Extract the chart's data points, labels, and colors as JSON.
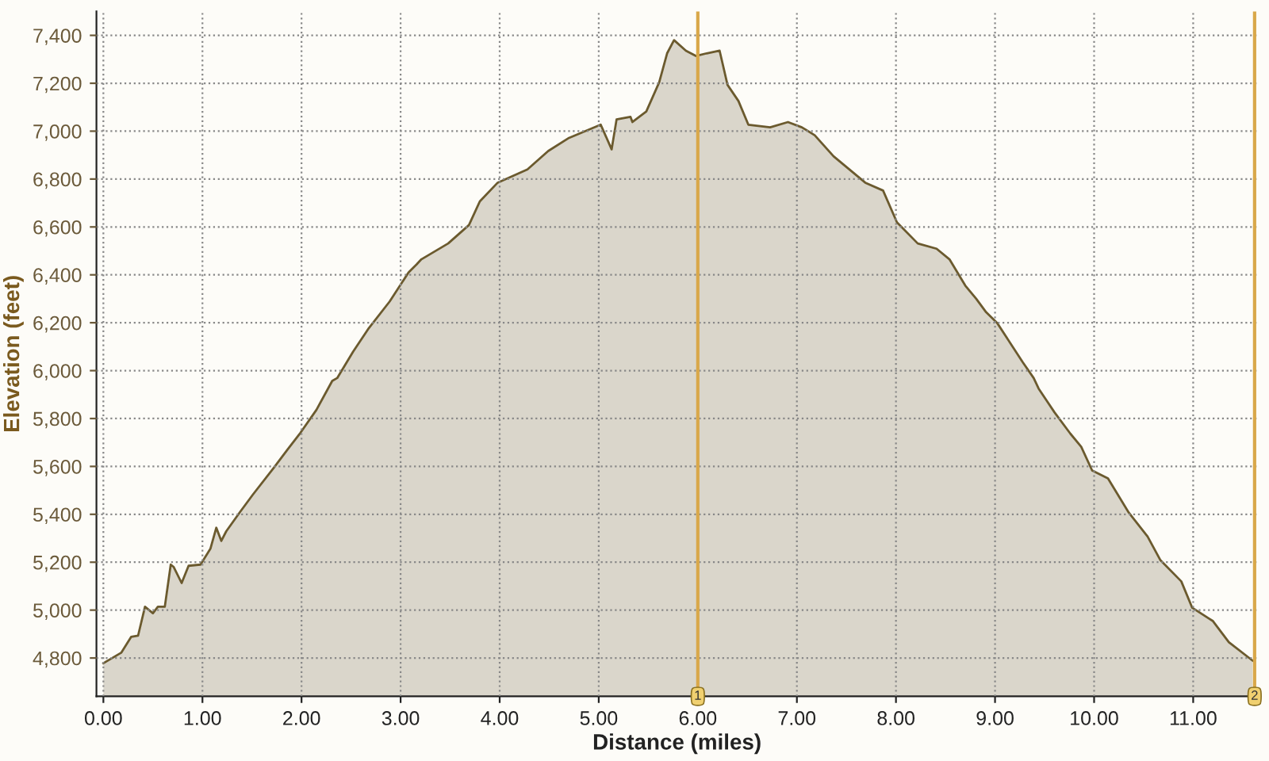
{
  "chart_data": {
    "type": "area",
    "xlabel": "Distance (miles)",
    "ylabel": "Elevation (feet)",
    "x": [
      0,
      0.18,
      0.28,
      0.35,
      0.42,
      0.5,
      0.55,
      0.62,
      0.68,
      0.71,
      0.79,
      0.86,
      0.98,
      1.08,
      1.14,
      1.19,
      1.24,
      1.38,
      1.51,
      1.72,
      1.86,
      1.99,
      2.15,
      2.31,
      2.36,
      2.52,
      2.68,
      2.89,
      3.08,
      3.16,
      3.21,
      3.48,
      3.69,
      3.8,
      3.98,
      4.28,
      4.49,
      4.7,
      5.02,
      5.13,
      5.18,
      5.32,
      5.34,
      5.48,
      5.61,
      5.69,
      5.76,
      5.88,
      5.98,
      6.09,
      6.22,
      6.3,
      6.41,
      6.51,
      6.73,
      6.91,
      7.05,
      7.18,
      7.37,
      7.69,
      7.87,
      8.01,
      8.22,
      8.41,
      8.54,
      8.7,
      8.81,
      8.91,
      9.02,
      9.28,
      9.39,
      9.44,
      9.6,
      9.76,
      9.87,
      9.98,
      10.14,
      10.35,
      10.54,
      10.67,
      10.88,
      10.99,
      11.2,
      11.36,
      11.6
    ],
    "series": [
      {
        "color": "#6b5a2e",
        "values": [
          4778,
          4822,
          4888,
          4893,
          5014,
          4987,
          5014,
          5014,
          5190,
          5180,
          5113,
          5185,
          5190,
          5256,
          5344,
          5289,
          5329,
          5410,
          5483,
          5594,
          5671,
          5741,
          5836,
          5957,
          5969,
          6079,
          6178,
          6289,
          6410,
          6443,
          6465,
          6531,
          6608,
          6707,
          6785,
          6840,
          6917,
          6972,
          7027,
          6924,
          7049,
          7060,
          7038,
          7082,
          7204,
          7325,
          7380,
          7336,
          7314,
          7325,
          7336,
          7193,
          7126,
          7027,
          7016,
          7038,
          7016,
          6983,
          6895,
          6785,
          6752,
          6619,
          6531,
          6509,
          6465,
          6355,
          6300,
          6244,
          6200,
          6035,
          5969,
          5925,
          5826,
          5737,
          5682,
          5583,
          5550,
          5407,
          5307,
          5208,
          5120,
          5010,
          4954,
          4866,
          4789
        ]
      }
    ],
    "xlim": [
      -0.07,
      11.65
    ],
    "ylim": [
      4640,
      7500
    ],
    "xticks": [
      {
        "value": 0,
        "label": "0.00"
      },
      {
        "value": 1,
        "label": "1.00"
      },
      {
        "value": 2,
        "label": "2.00"
      },
      {
        "value": 3,
        "label": "3.00"
      },
      {
        "value": 4,
        "label": "4.00"
      },
      {
        "value": 5,
        "label": "5.00"
      },
      {
        "value": 6,
        "label": "6.00"
      },
      {
        "value": 7,
        "label": "7.00"
      },
      {
        "value": 8,
        "label": "8.00"
      },
      {
        "value": 9,
        "label": "9.00"
      },
      {
        "value": 10,
        "label": "10.00"
      },
      {
        "value": 11,
        "label": "11.00"
      }
    ],
    "yticks": [
      {
        "value": 4800,
        "label": "4,800"
      },
      {
        "value": 5000,
        "label": "5,000"
      },
      {
        "value": 5200,
        "label": "5,200"
      },
      {
        "value": 5400,
        "label": "5,400"
      },
      {
        "value": 5600,
        "label": "5,600"
      },
      {
        "value": 5800,
        "label": "5,800"
      },
      {
        "value": 6000,
        "label": "6,000"
      },
      {
        "value": 6200,
        "label": "6,200"
      },
      {
        "value": 6400,
        "label": "6,400"
      },
      {
        "value": 6600,
        "label": "6,600"
      },
      {
        "value": 6800,
        "label": "6,800"
      },
      {
        "value": 7000,
        "label": "7,000"
      },
      {
        "value": 7200,
        "label": "7,200"
      },
      {
        "value": 7400,
        "label": "7,400"
      }
    ],
    "grid": true,
    "line_style": "solid",
    "marker": "none",
    "ref_lines": [
      {
        "axis": "x",
        "value": 6.0,
        "color": "#d9a84a"
      },
      {
        "axis": "x",
        "value": 11.62,
        "color": "#d9a84a"
      }
    ],
    "annotations": [
      {
        "text": "1",
        "x": 6.0,
        "y": 4640
      },
      {
        "text": "2",
        "x": 11.62,
        "y": 4640
      }
    ]
  }
}
